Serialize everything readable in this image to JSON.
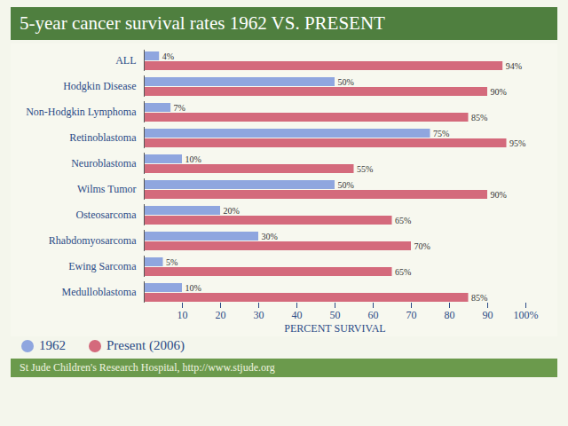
{
  "chart_data": {
    "type": "bar",
    "orientation": "horizontal",
    "title": "5-year cancer survival rates 1962 VS. PRESENT",
    "categories": [
      "ALL",
      "Hodgkin Disease",
      "Non-Hodgkin Lymphoma",
      "Retinoblastoma",
      "Neuroblastoma",
      "Wilms Tumor",
      "Osteosarcoma",
      "Rhabdomyosarcoma",
      "Ewing Sarcoma",
      "Medulloblastoma"
    ],
    "series": [
      {
        "name": "1962",
        "color": "#8fa6df",
        "values": [
          4,
          50,
          7,
          75,
          10,
          50,
          20,
          30,
          5,
          10
        ],
        "value_labels": [
          "4%",
          "50%",
          "7%",
          "75%",
          "10%",
          "50%",
          "20%",
          "30%",
          "5%",
          "10%"
        ]
      },
      {
        "name": "Present (2006)",
        "color": "#d46a7c",
        "values": [
          94,
          90,
          85,
          95,
          55,
          90,
          65,
          70,
          65,
          85
        ],
        "value_labels": [
          "94%",
          "90%",
          "85%",
          "95%",
          "55%",
          "90%",
          "65%",
          "70%",
          "65%",
          "85%"
        ]
      }
    ],
    "xlabel": "PERCENT SURVIVAL",
    "xlim": [
      0,
      100
    ],
    "xticks": [
      10,
      20,
      30,
      40,
      50,
      60,
      70,
      80,
      90,
      {
        "value": 100,
        "label": "100%"
      }
    ],
    "data_labels": true,
    "grid": false,
    "legend": "bottom-left",
    "caption": "St Jude Children's Research Hospital, http://www.stjude.org"
  }
}
